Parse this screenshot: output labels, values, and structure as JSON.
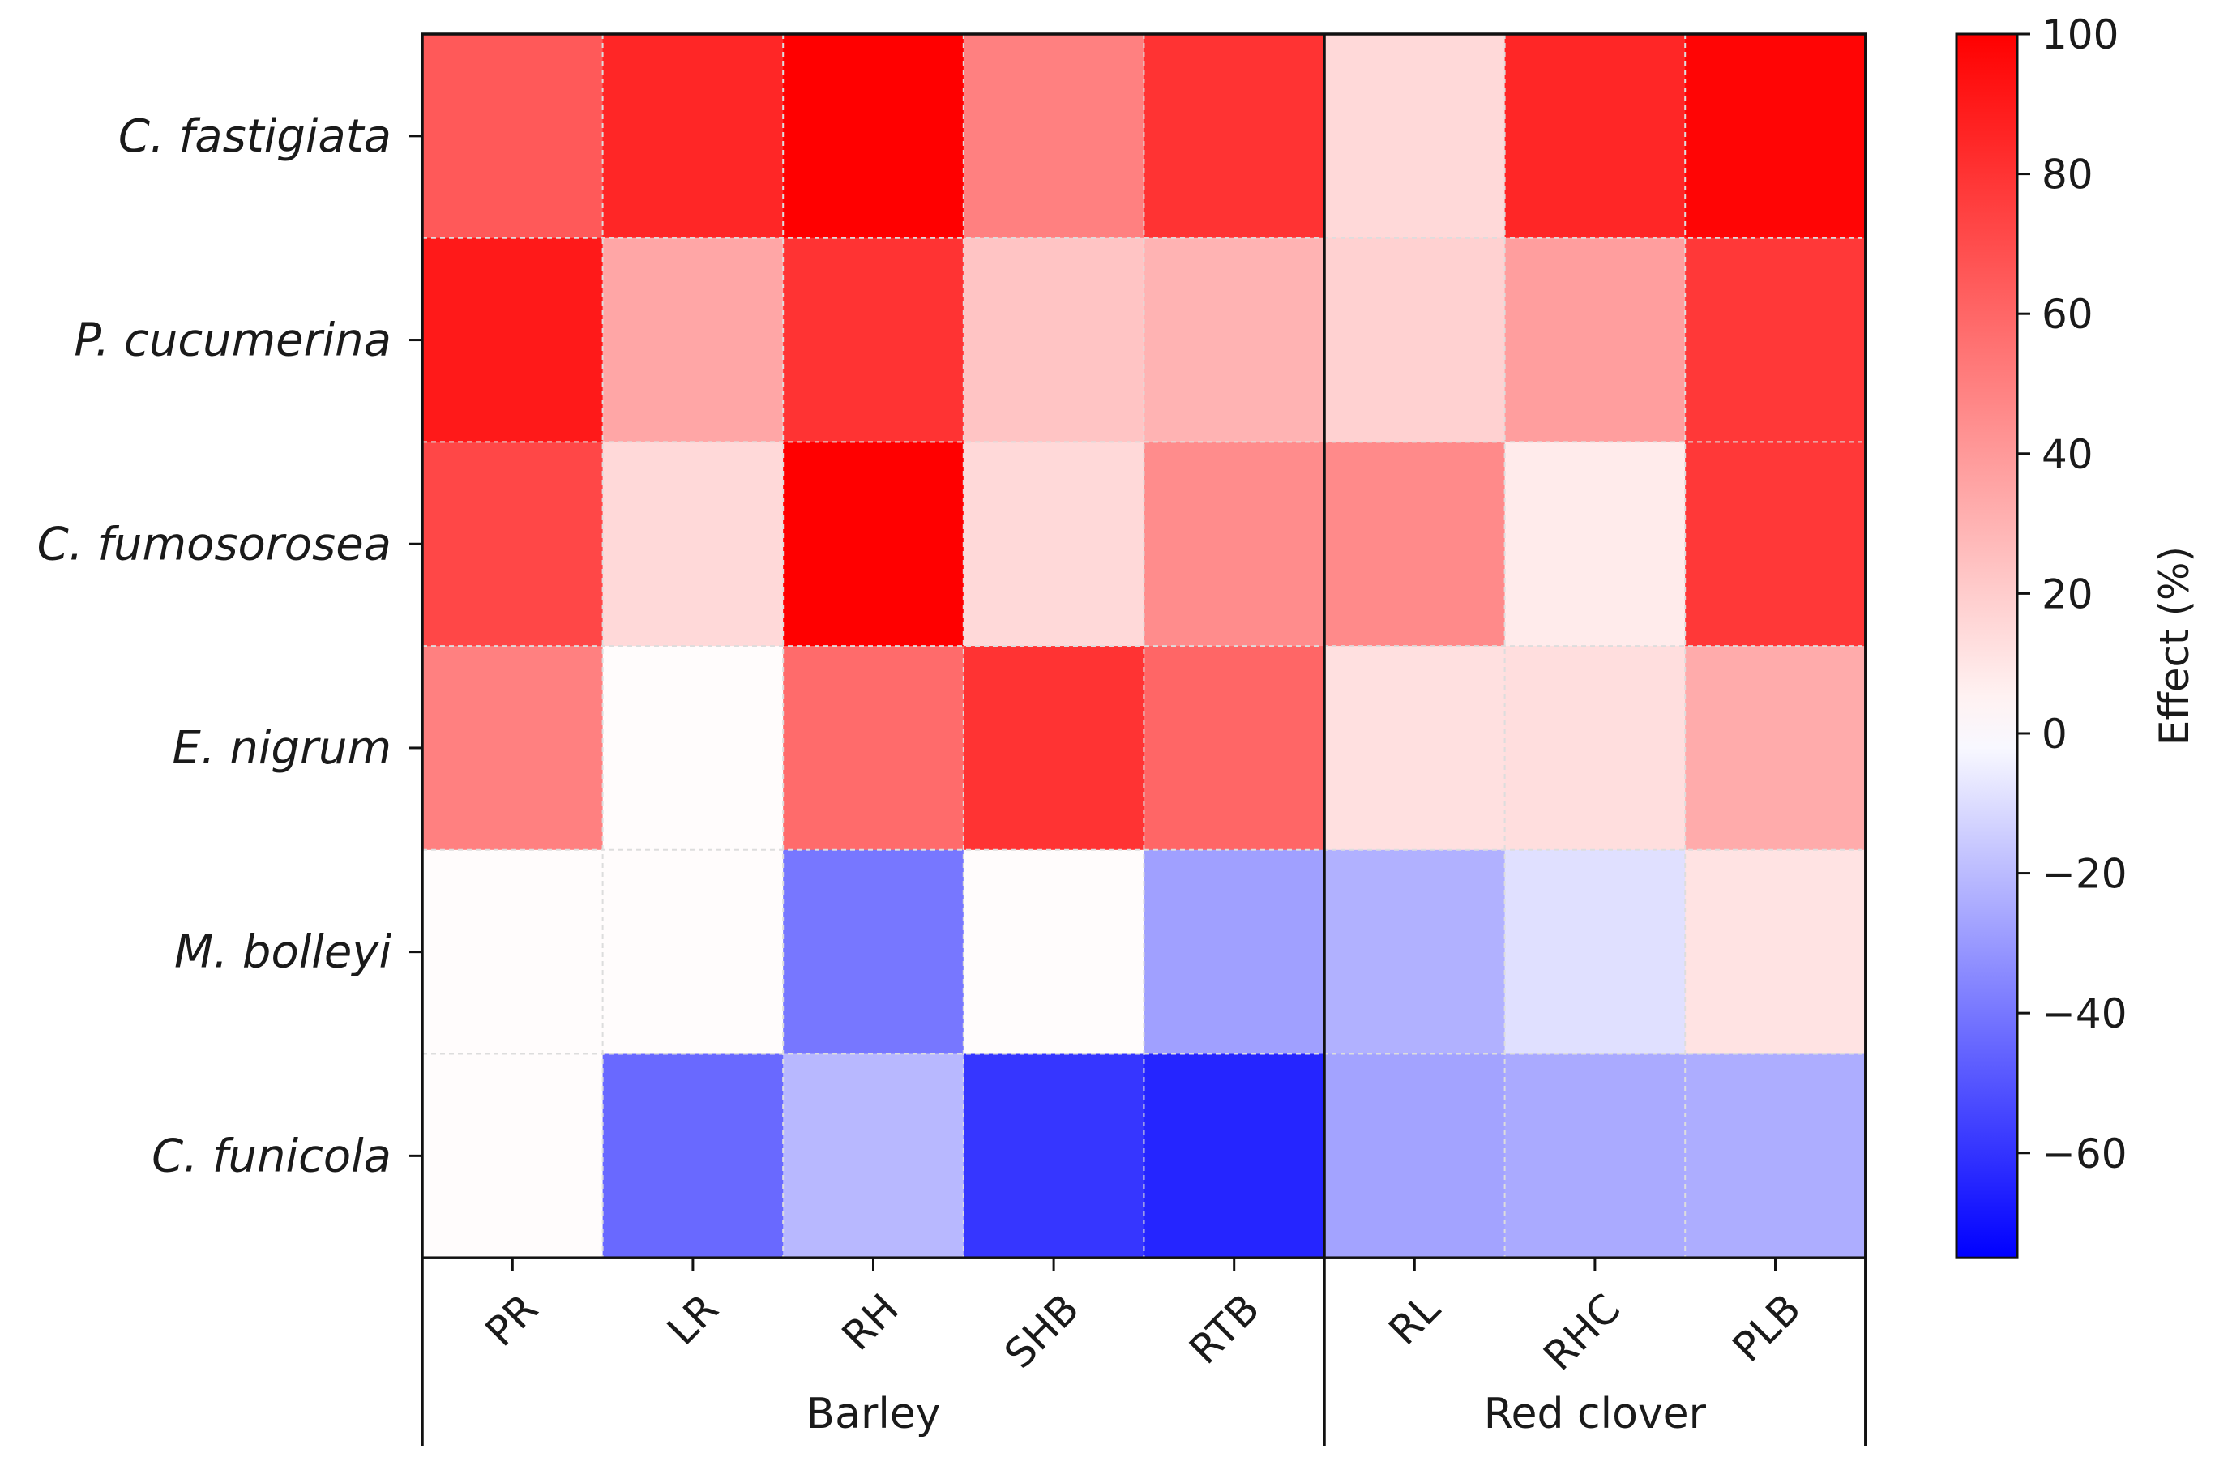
{
  "chart_data": {
    "type": "heatmap",
    "rows": [
      "C. fastigiata",
      "P. cucumerina",
      "C. fumosorosea",
      "E. nigrum",
      "M. bolleyi",
      "C. funicola"
    ],
    "columns": [
      "PR",
      "LR",
      "RH",
      "SHB",
      "RTB",
      "RL",
      "RHC",
      "PLB"
    ],
    "groups": [
      {
        "label": "Barley",
        "columns": [
          "PR",
          "LR",
          "RH",
          "SHB",
          "RTB"
        ]
      },
      {
        "label": "Red clover",
        "columns": [
          "RL",
          "RHC",
          "PLB"
        ]
      }
    ],
    "values": [
      [
        65,
        85,
        100,
        50,
        80,
        15,
        85,
        98
      ],
      [
        90,
        35,
        80,
        23,
        30,
        18,
        38,
        78
      ],
      [
        72,
        15,
        100,
        15,
        45,
        46,
        8,
        78
      ],
      [
        50,
        1,
        58,
        80,
        60,
        12,
        13,
        33
      ],
      [
        1,
        1,
        -40,
        1,
        -28,
        -23,
        -9,
        11
      ],
      [
        1,
        -44,
        -21,
        -59,
        -64,
        -27,
        -25,
        -24
      ]
    ],
    "colorbar": {
      "label": "Effect (%)",
      "min": -75,
      "max": 100,
      "ticks": [
        100,
        80,
        60,
        40,
        20,
        0,
        -20,
        -40,
        -60
      ],
      "tick_labels": [
        "100",
        "80",
        "60",
        "40",
        "20",
        "0",
        "−20",
        "−40",
        "−60"
      ],
      "colormap": "bwr"
    },
    "colors": {
      "negative": "#0000ff",
      "zero": "#ffffff",
      "positive": "#ff0000"
    },
    "grid": true
  }
}
